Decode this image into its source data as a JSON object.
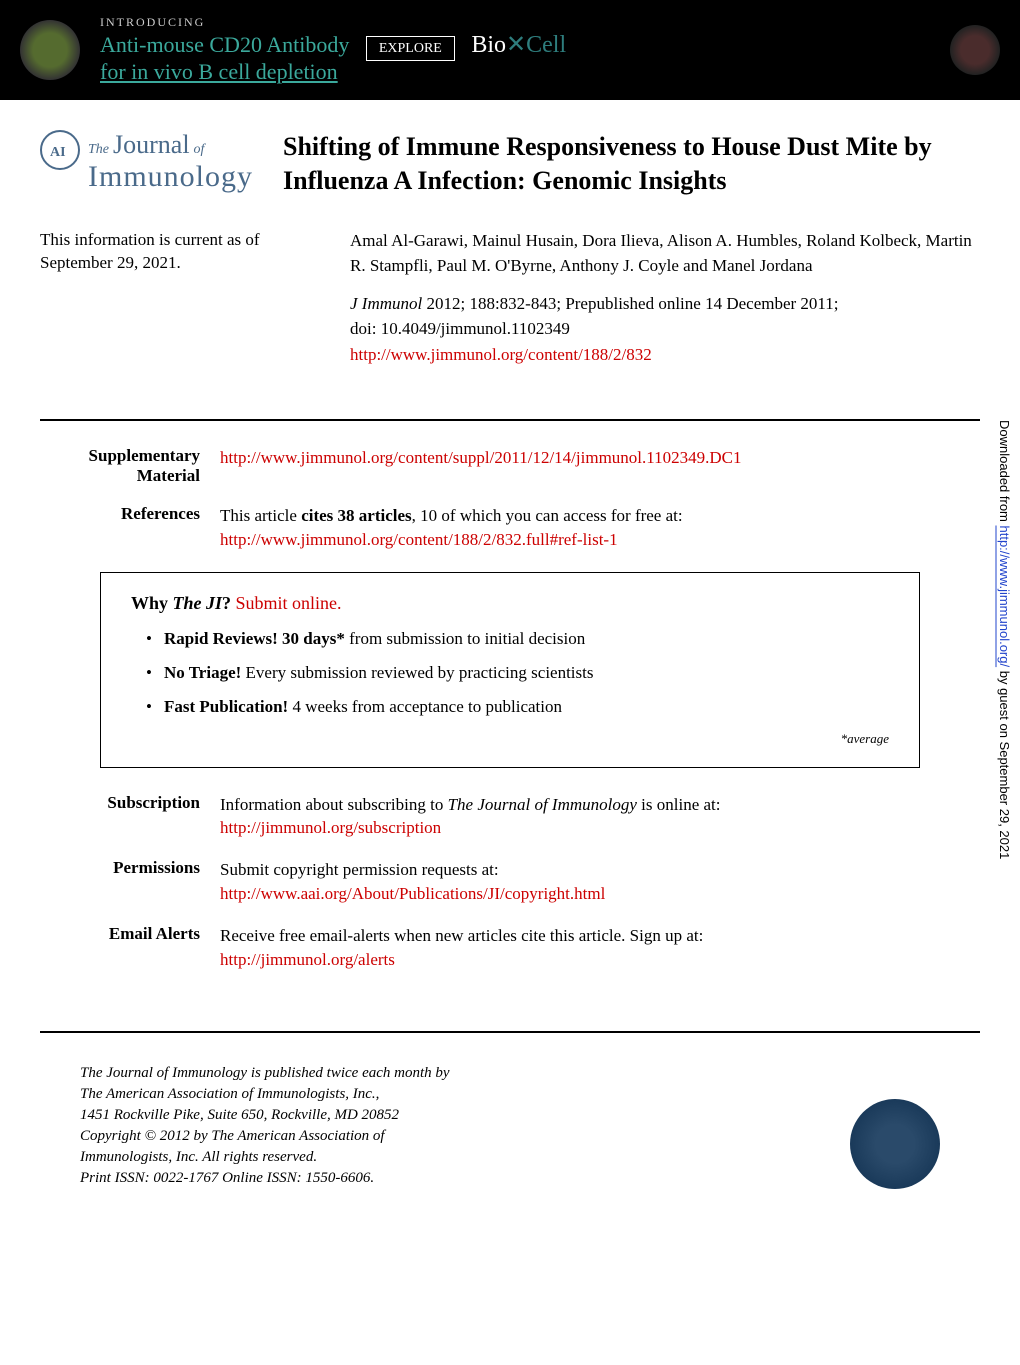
{
  "banner": {
    "intro": "INTRODUCING",
    "line1": "Anti-mouse CD20 Antibody",
    "line2": "for in vivo B cell depletion",
    "explore": "EXPLORE",
    "logo_bio": "Bio",
    "logo_cell": "Cell"
  },
  "journal": {
    "the": "The",
    "journal": "Journal",
    "of": "of",
    "immunology": "Immunology",
    "badge": "AAI"
  },
  "article": {
    "title": "Shifting of Immune Responsiveness to House Dust Mite by Influenza A Infection: Genomic Insights"
  },
  "current": {
    "text": "This information is current as of September 29, 2021."
  },
  "authors": "Amal Al-Garawi, Mainul Husain, Dora Ilieva, Alison A. Humbles, Roland Kolbeck, Martin R. Stampfli, Paul M. O'Byrne, Anthony J. Coyle and Manel Jordana",
  "citation": {
    "journal": "J Immunol",
    "details": " 2012; 188:832-843; Prepublished online 14 December 2011;",
    "doi": "doi: 10.4049/jimmunol.1102349",
    "url": "http://www.jimmunol.org/content/188/2/832"
  },
  "supplementary": {
    "label": "Supplementary Material",
    "url": "http://www.jimmunol.org/content/suppl/2011/12/14/jimmunol.1102349.DC1"
  },
  "references": {
    "label": "References",
    "text_pre": "This article ",
    "text_bold": "cites 38 articles",
    "text_post": ", 10 of which you can access for free at:",
    "url": "http://www.jimmunol.org/content/188/2/832.full#ref-list-1"
  },
  "why": {
    "title_pre": "Why ",
    "title_ji": "The JI",
    "title_q": "? ",
    "title_submit": "Submit online.",
    "items": [
      {
        "bold": "Rapid Reviews! 30 days*",
        "rest": " from submission to initial decision"
      },
      {
        "bold": "No Triage!",
        "rest": " Every submission reviewed by practicing scientists"
      },
      {
        "bold": "Fast Publication!",
        "rest": " 4 weeks from acceptance to publication"
      }
    ],
    "average": "*average"
  },
  "subscription": {
    "label": "Subscription",
    "text_pre": "Information about subscribing to ",
    "text_ital": "The Journal of Immunology",
    "text_post": " is online at:",
    "url": "http://jimmunol.org/subscription"
  },
  "permissions": {
    "label": "Permissions",
    "text": "Submit copyright permission requests at:",
    "url": "http://www.aai.org/About/Publications/JI/copyright.html"
  },
  "alerts": {
    "label": "Email Alerts",
    "text": "Receive free email-alerts when new articles cite this article. Sign up at:",
    "url": "http://jimmunol.org/alerts"
  },
  "footer": {
    "line1_pre": "",
    "line1_ital": "The Journal of Immunology",
    "line1_post": " is published twice each month by",
    "line2": "The American Association of Immunologists, Inc.,",
    "line3": "1451 Rockville Pike, Suite 650, Rockville, MD 20852",
    "line4": "Copyright © 2012 by The American Association of",
    "line5": "Immunologists, Inc. All rights reserved.",
    "line6": "Print ISSN: 0022-1767 Online ISSN: 1550-6606."
  },
  "sidebar": {
    "pre": "Downloaded from ",
    "url": "http://www.jimmunol.org/",
    "post": " by guest on September 29, 2021"
  }
}
